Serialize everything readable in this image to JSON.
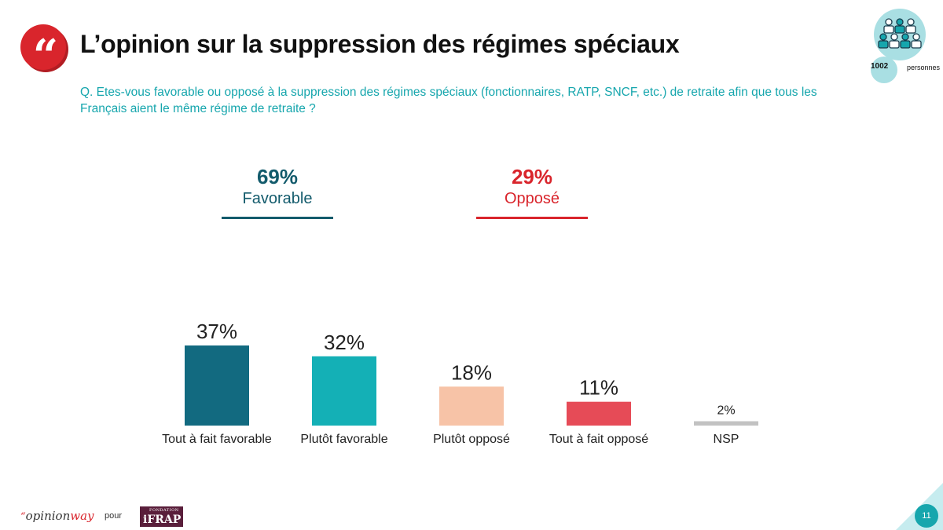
{
  "header": {
    "title": "L’opinion sur la suppression des régimes spéciaux",
    "question": "Q. Etes-vous favorable ou opposé à la suppression des régimes spéciaux (fonctionnaires, RATP, SNCF, etc.) de retraite afin que tous les Français aient le même régime de retraite ?"
  },
  "sample": {
    "count": "1002",
    "label": "personnes",
    "icon": "people-group-icon"
  },
  "summary": {
    "favorable": {
      "pct": "69%",
      "label": "Favorable",
      "color": "#135b6c"
    },
    "oppose": {
      "pct": "29%",
      "label": "Opposé",
      "color": "#d9252c"
    }
  },
  "chart_data": {
    "type": "bar",
    "title": "",
    "xlabel": "",
    "ylabel": "",
    "ylim": [
      0,
      37
    ],
    "grid": false,
    "categories": [
      "Tout à fait favorable",
      "Plutôt favorable",
      "Plutôt opposé",
      "Tout à fait opposé",
      "NSP"
    ],
    "values": [
      37,
      32,
      18,
      11,
      2
    ],
    "labels": [
      "37%",
      "32%",
      "18%",
      "11%",
      "2%"
    ],
    "colors": [
      "#126a80",
      "#14b0b6",
      "#f7c3a7",
      "#e64b57",
      "#c2c2c2"
    ]
  },
  "footer": {
    "brand_prefix": "“",
    "brand_main": "opinion",
    "brand_suffix": "way",
    "pour": "pour",
    "partner_small": "FONDATION",
    "partner_big": "iFRAP",
    "page_number": "11"
  }
}
